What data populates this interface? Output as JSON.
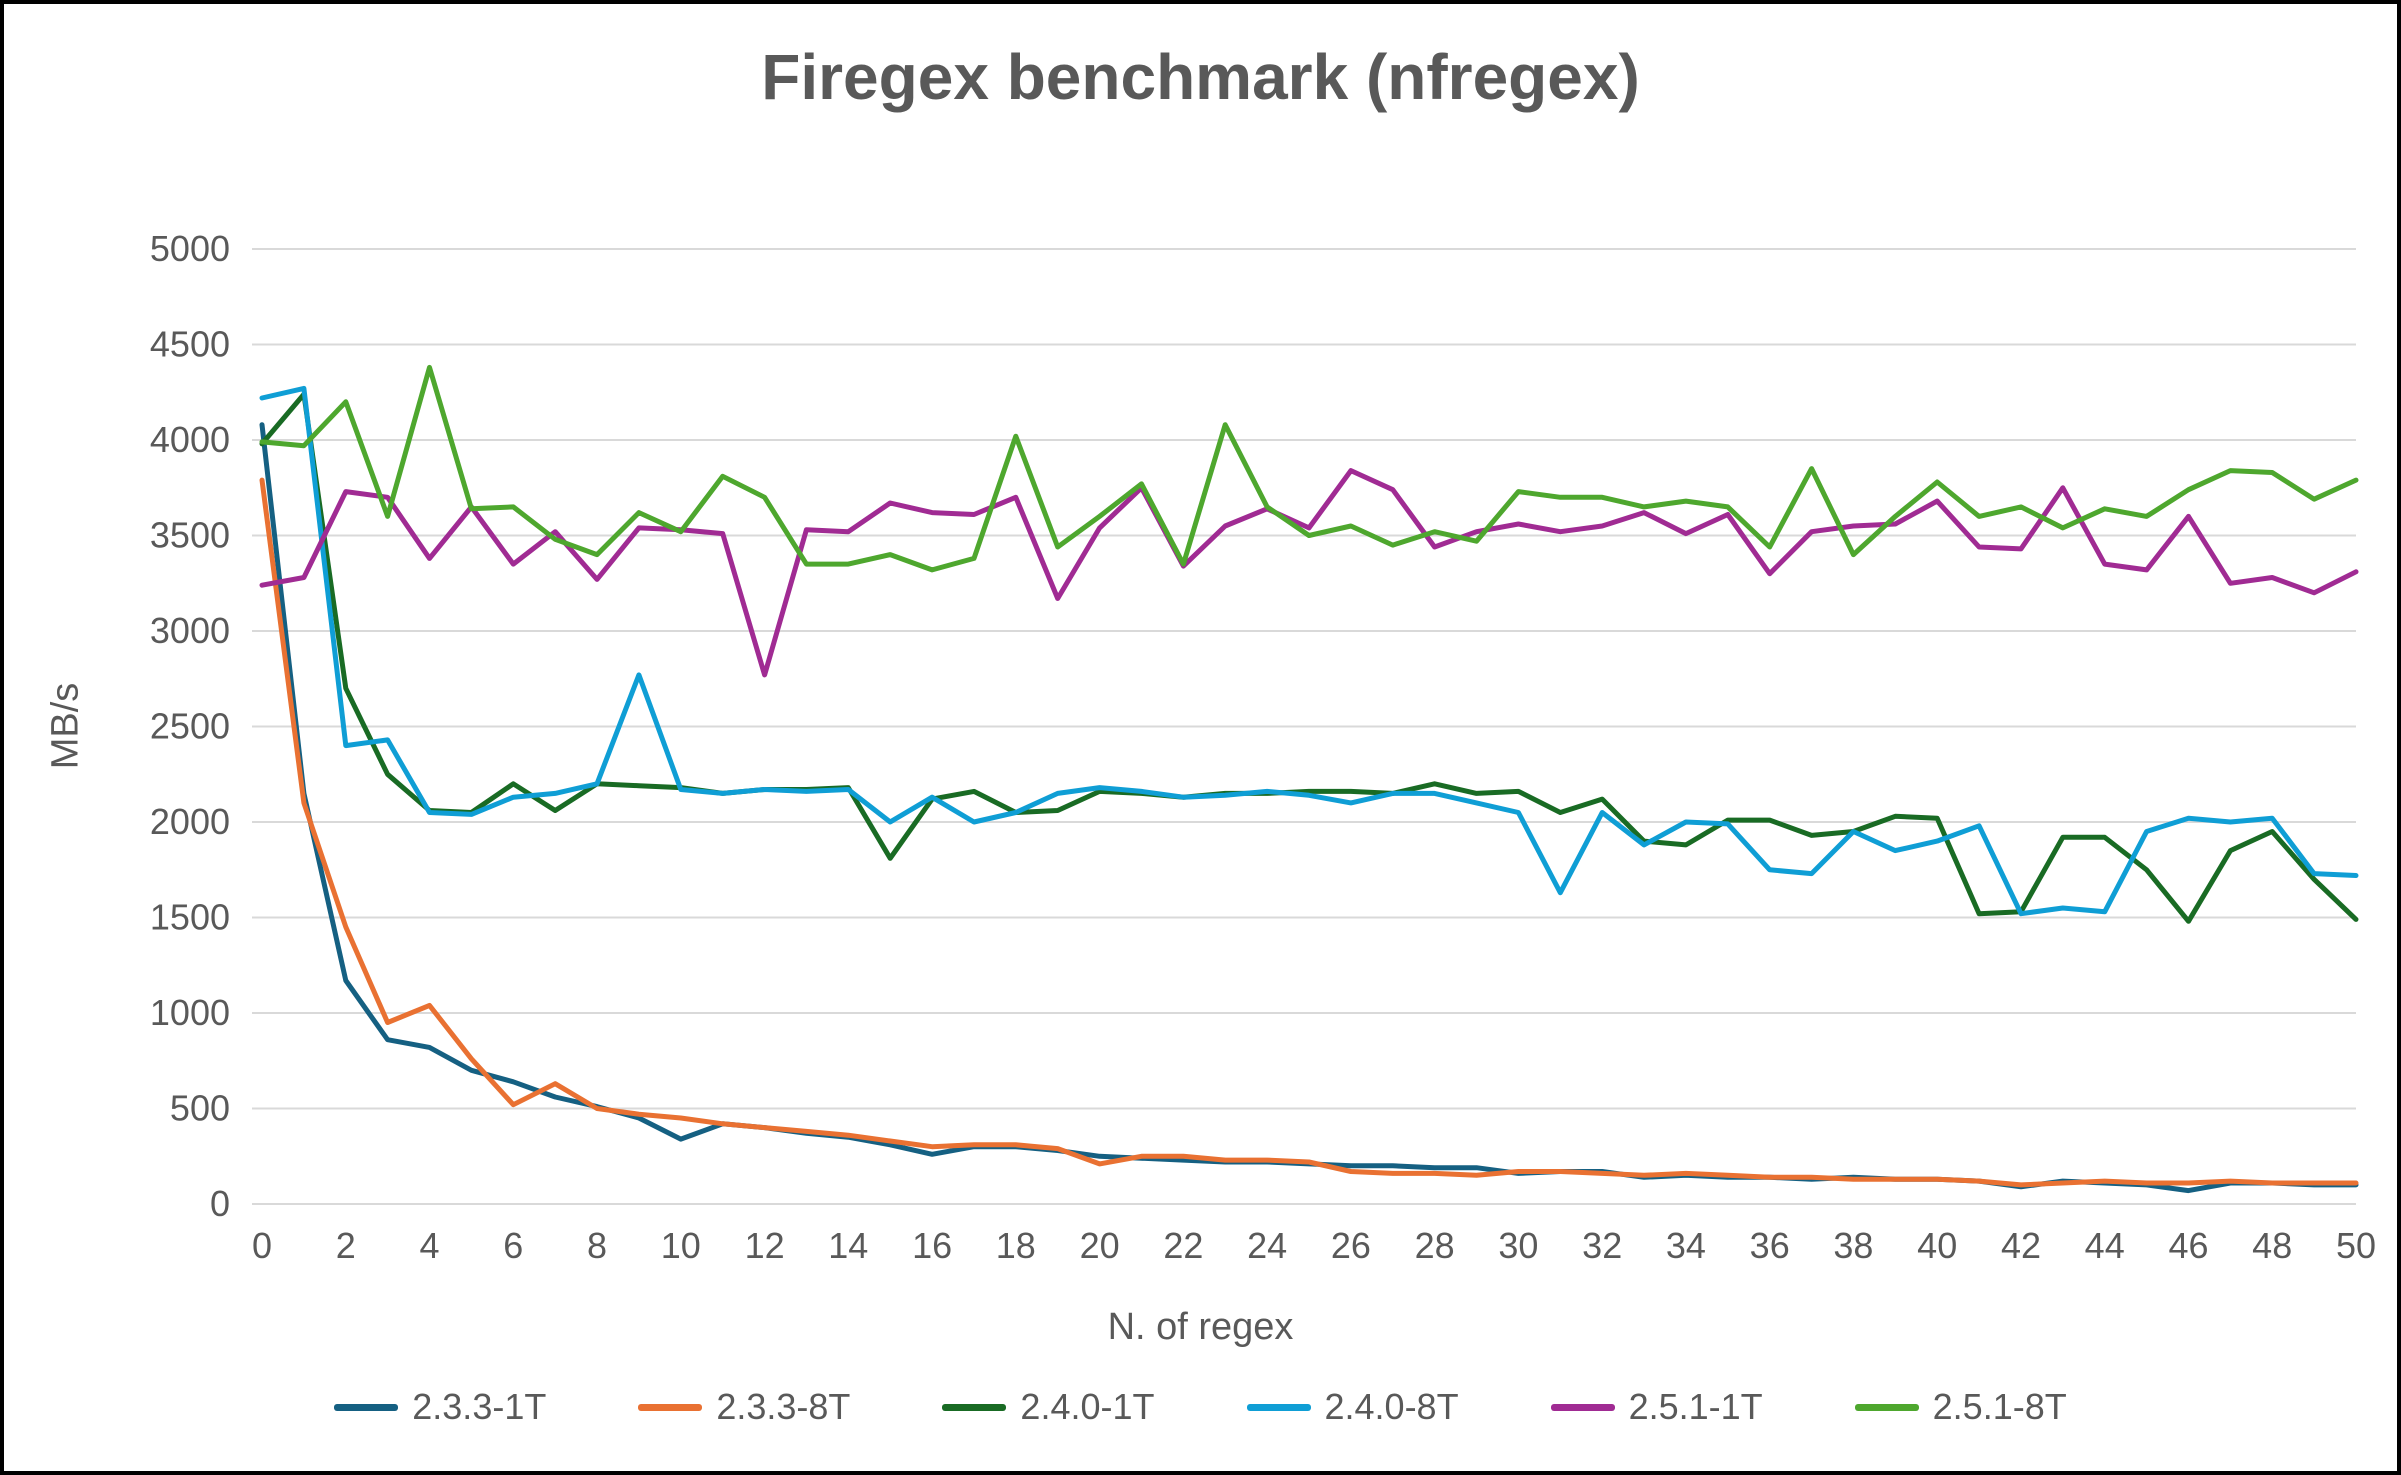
{
  "chart_data": {
    "type": "line",
    "title": "Firegex benchmark (nfregex)",
    "xlabel": "N. of regex",
    "ylabel": "MB/s",
    "xlim": [
      0,
      50
    ],
    "ylim": [
      0,
      5000
    ],
    "grid": "horizontal",
    "grid_color": "#d9d9d9",
    "tick_color": "#595959",
    "legend_position": "bottom",
    "x_ticks": [
      0,
      2,
      4,
      6,
      8,
      10,
      12,
      14,
      16,
      18,
      20,
      22,
      24,
      26,
      28,
      30,
      32,
      34,
      36,
      38,
      40,
      42,
      44,
      46,
      48,
      50
    ],
    "y_ticks": [
      0,
      500,
      1000,
      1500,
      2000,
      2500,
      3000,
      3500,
      4000,
      4500,
      5000
    ],
    "x": [
      0,
      1,
      2,
      3,
      4,
      5,
      6,
      7,
      8,
      9,
      10,
      11,
      12,
      13,
      14,
      15,
      16,
      17,
      18,
      19,
      20,
      21,
      22,
      23,
      24,
      25,
      26,
      27,
      28,
      29,
      30,
      31,
      32,
      33,
      34,
      35,
      36,
      37,
      38,
      39,
      40,
      41,
      42,
      43,
      44,
      45,
      46,
      47,
      48,
      49,
      50
    ],
    "series": [
      {
        "name": "2.3.3-1T",
        "color": "#156082",
        "values": [
          4080,
          2150,
          1170,
          860,
          820,
          700,
          640,
          560,
          510,
          450,
          340,
          420,
          400,
          370,
          350,
          310,
          260,
          300,
          300,
          280,
          250,
          240,
          230,
          220,
          220,
          210,
          200,
          200,
          190,
          190,
          160,
          170,
          170,
          140,
          150,
          140,
          140,
          130,
          140,
          130,
          130,
          120,
          90,
          120,
          110,
          100,
          70,
          110,
          110,
          100,
          100
        ]
      },
      {
        "name": "2.3.3-8T",
        "color": "#E97132",
        "values": [
          3790,
          2100,
          1450,
          950,
          1040,
          760,
          520,
          630,
          500,
          470,
          450,
          420,
          400,
          380,
          360,
          330,
          300,
          310,
          310,
          290,
          210,
          250,
          250,
          230,
          230,
          220,
          170,
          160,
          160,
          150,
          170,
          170,
          160,
          150,
          160,
          150,
          140,
          140,
          130,
          130,
          130,
          120,
          100,
          110,
          120,
          110,
          110,
          120,
          110,
          110,
          110
        ]
      },
      {
        "name": "2.4.0-1T",
        "color": "#196B24",
        "values": [
          3980,
          4240,
          2700,
          2250,
          2060,
          2050,
          2200,
          2060,
          2200,
          2190,
          2180,
          2150,
          2170,
          2170,
          2180,
          1810,
          2120,
          2160,
          2050,
          2060,
          2160,
          2150,
          2130,
          2150,
          2150,
          2160,
          2160,
          2150,
          2200,
          2150,
          2160,
          2050,
          2120,
          1900,
          1880,
          2010,
          2010,
          1930,
          1950,
          2030,
          2020,
          1520,
          1530,
          1920,
          1920,
          1750,
          1480,
          1850,
          1950,
          1700,
          1490
        ]
      },
      {
        "name": "2.4.0-8T",
        "color": "#0F9ED5",
        "values": [
          4220,
          4270,
          2400,
          2430,
          2050,
          2040,
          2130,
          2150,
          2200,
          2770,
          2170,
          2150,
          2170,
          2160,
          2170,
          2000,
          2130,
          2000,
          2050,
          2150,
          2180,
          2160,
          2130,
          2140,
          2160,
          2140,
          2100,
          2150,
          2150,
          2100,
          2050,
          1630,
          2050,
          1880,
          2000,
          1990,
          1750,
          1730,
          1950,
          1850,
          1900,
          1980,
          1520,
          1550,
          1530,
          1950,
          2020,
          2000,
          2020,
          1730,
          1720
        ]
      },
      {
        "name": "2.5.1-1T",
        "color": "#A02B93",
        "values": [
          3240,
          3280,
          3730,
          3700,
          3380,
          3650,
          3350,
          3520,
          3270,
          3540,
          3530,
          3510,
          2770,
          3530,
          3520,
          3670,
          3620,
          3610,
          3700,
          3170,
          3540,
          3750,
          3340,
          3550,
          3640,
          3540,
          3840,
          3740,
          3440,
          3520,
          3560,
          3520,
          3550,
          3620,
          3510,
          3610,
          3300,
          3520,
          3550,
          3560,
          3680,
          3440,
          3430,
          3750,
          3350,
          3320,
          3600,
          3250,
          3280,
          3200,
          3310
        ]
      },
      {
        "name": "2.5.1-8T",
        "color": "#4EA72E",
        "values": [
          3990,
          3970,
          4200,
          3600,
          4380,
          3640,
          3650,
          3480,
          3400,
          3620,
          3520,
          3810,
          3700,
          3350,
          3350,
          3400,
          3320,
          3380,
          4020,
          3440,
          3600,
          3770,
          3350,
          4080,
          3650,
          3500,
          3550,
          3450,
          3520,
          3470,
          3730,
          3700,
          3700,
          3650,
          3680,
          3650,
          3440,
          3850,
          3400,
          3600,
          3780,
          3600,
          3650,
          3540,
          3640,
          3600,
          3740,
          3840,
          3830,
          3690,
          3790
        ]
      }
    ]
  }
}
